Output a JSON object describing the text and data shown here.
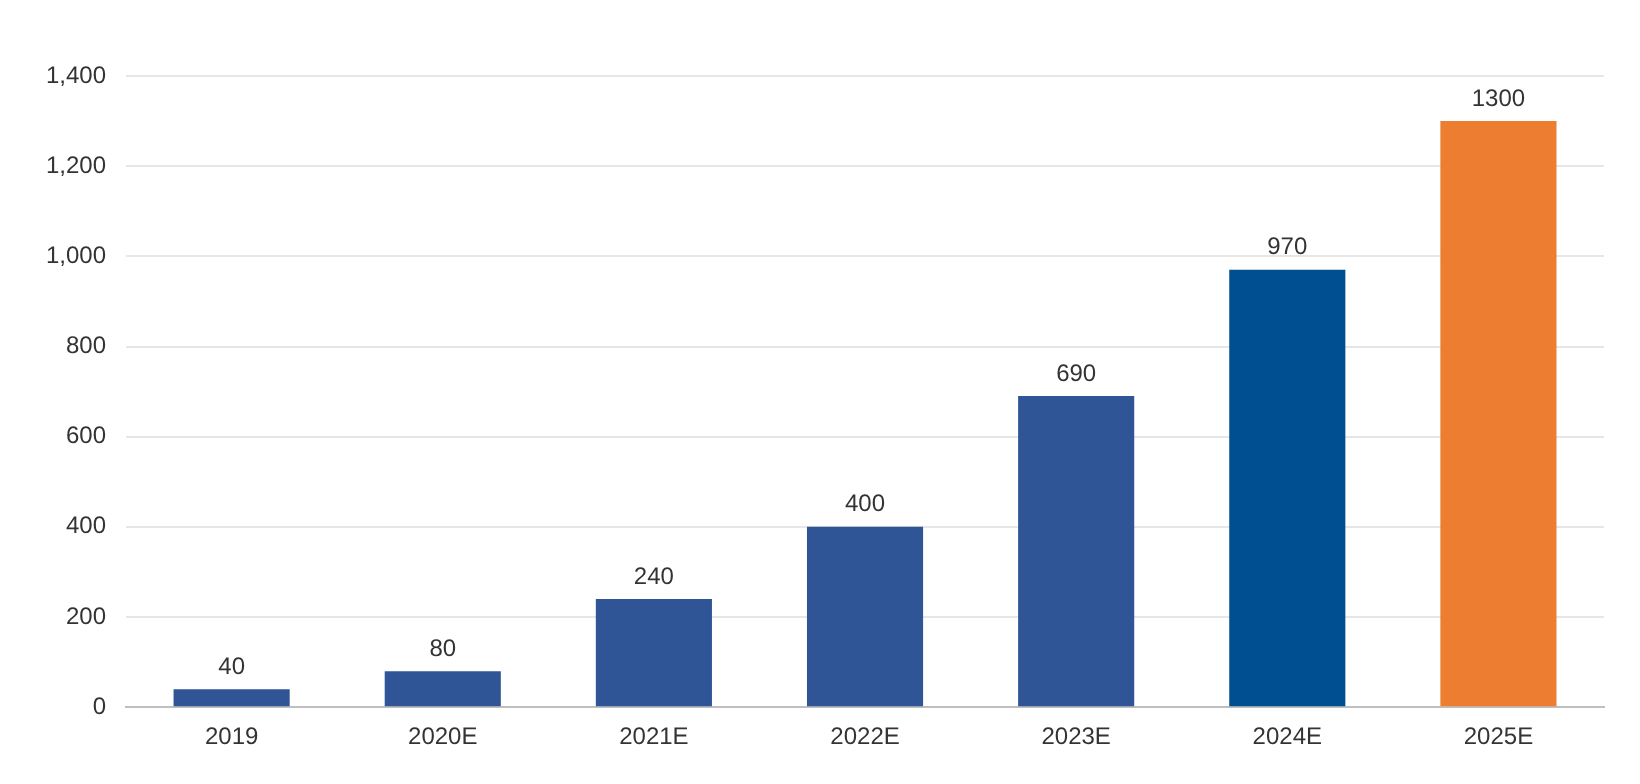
{
  "chart_data": {
    "type": "bar",
    "categories": [
      "2019",
      "2020E",
      "2021E",
      "2022E",
      "2023E",
      "2024E",
      "2025E"
    ],
    "values": [
      40,
      80,
      240,
      400,
      690,
      970,
      1300
    ],
    "colors": [
      "#2f5597",
      "#2f5597",
      "#2f5597",
      "#2f5597",
      "#2f5597",
      "#005091",
      "#ed7d31"
    ],
    "ylim": [
      0,
      1400
    ],
    "yticks": [
      {
        "value": 0,
        "label": "0"
      },
      {
        "value": 200,
        "label": "200"
      },
      {
        "value": 400,
        "label": "400"
      },
      {
        "value": 600,
        "label": "600"
      },
      {
        "value": 800,
        "label": "800"
      },
      {
        "value": 1000,
        "label": "1,000"
      },
      {
        "value": 1200,
        "label": "1,200"
      },
      {
        "value": 1400,
        "label": "1,400"
      }
    ],
    "grid": "y",
    "data_labels": true,
    "legend": false
  }
}
